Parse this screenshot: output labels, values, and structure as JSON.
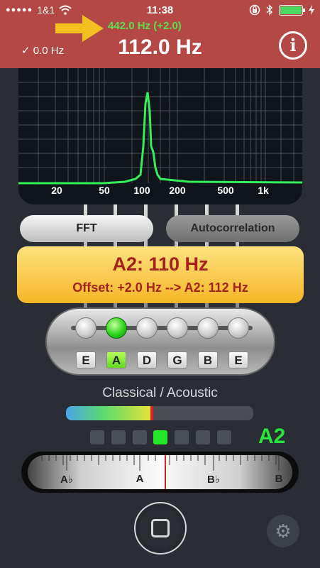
{
  "status_bar": {
    "carrier": "1&1",
    "time": "11:38",
    "icons": [
      "signal-dots-icon",
      "wifi-icon",
      "rotation-lock-icon",
      "bluetooth-icon",
      "battery-icon",
      "charging-icon"
    ]
  },
  "header": {
    "reference_frequency": "442.0 Hz (+2.0)",
    "offset_indicator": "✓ 0.0 Hz",
    "detected_frequency": "112.0 Hz",
    "info_symbol": "i",
    "colors": {
      "background": "#b34845",
      "reference": "#5be04d",
      "arrow": "#f3c11d"
    }
  },
  "spectrum": {
    "tick_labels": [
      "20",
      "50",
      "100",
      "200",
      "500",
      "1k"
    ]
  },
  "modes": {
    "fft_label": "FFT",
    "autocorrelation_label": "Autocorrelation",
    "selected": "FFT"
  },
  "note_box": {
    "note": "A2: 110 Hz",
    "offset_text": "Offset: +2.0 Hz --> A2: 112 Hz"
  },
  "strings": {
    "labels": [
      "E",
      "A",
      "D",
      "G",
      "B",
      "E"
    ],
    "selected_index": 1
  },
  "tuning": {
    "name": "Classical / Acoustic"
  },
  "level": {
    "fraction": 0.46,
    "colors": {
      "fill_start": "#4aa4e8",
      "fill_end": "#e8e33a",
      "peak": "#e02020"
    }
  },
  "indicators": {
    "count": 7,
    "active_index": 3,
    "current_note": "A2"
  },
  "scale": {
    "labels": [
      "A♭",
      "A",
      "B♭",
      "B"
    ]
  },
  "controls": {
    "record_icon": "stop-square-icon",
    "settings_icon": "gear-icon"
  }
}
